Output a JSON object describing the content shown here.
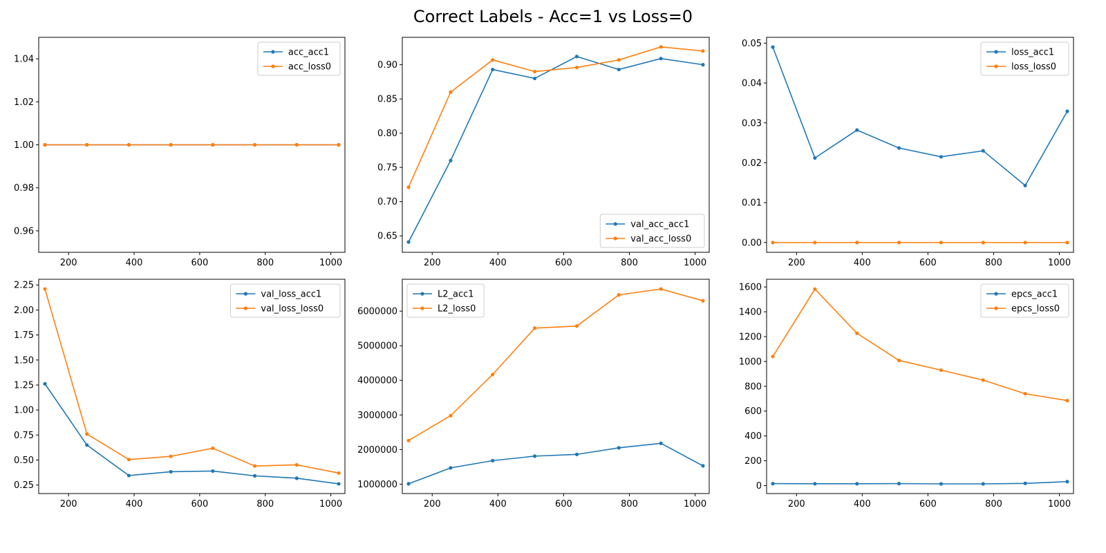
{
  "title": "Correct Labels - Acc=1 vs Loss=0",
  "colors": {
    "series1": "#1f77b4",
    "series2": "#ff7f0e"
  },
  "chart_data": [
    {
      "type": "line",
      "x": [
        128,
        256,
        384,
        512,
        640,
        768,
        896,
        1024
      ],
      "series": [
        {
          "name": "acc_acc1",
          "values": [
            1,
            1,
            1,
            1,
            1,
            1,
            1,
            1
          ]
        },
        {
          "name": "acc_loss0",
          "values": [
            1,
            1,
            1,
            1,
            1,
            1,
            1,
            1
          ]
        }
      ],
      "xlim": [
        109,
        1043
      ],
      "ylim": [
        0.95,
        1.05
      ],
      "xticks": [
        200,
        400,
        600,
        800,
        1000
      ],
      "yticks": [
        0.96,
        0.98,
        1.0,
        1.02,
        1.04
      ],
      "ytick_labels": [
        "0.96",
        "0.98",
        "1.00",
        "1.02",
        "1.04"
      ],
      "legend": "upper right"
    },
    {
      "type": "line",
      "x": [
        128,
        256,
        384,
        512,
        640,
        768,
        896,
        1024
      ],
      "series": [
        {
          "name": "val_acc_acc1",
          "values": [
            0.641,
            0.76,
            0.893,
            0.88,
            0.912,
            0.893,
            0.909,
            0.9
          ]
        },
        {
          "name": "val_acc_loss0",
          "values": [
            0.721,
            0.86,
            0.907,
            0.89,
            0.896,
            0.907,
            0.926,
            0.92
          ]
        }
      ],
      "xlim": [
        109,
        1043
      ],
      "ylim": [
        0.626,
        0.94
      ],
      "xticks": [
        200,
        400,
        600,
        800,
        1000
      ],
      "yticks": [
        0.65,
        0.7,
        0.75,
        0.8,
        0.85,
        0.9
      ],
      "ytick_labels": [
        "0.65",
        "0.70",
        "0.75",
        "0.80",
        "0.85",
        "0.90"
      ],
      "legend": "lower right"
    },
    {
      "type": "line",
      "x": [
        128,
        256,
        384,
        512,
        640,
        768,
        896,
        1024
      ],
      "series": [
        {
          "name": "loss_acc1",
          "values": [
            0.049,
            0.0212,
            0.0282,
            0.0237,
            0.0215,
            0.023,
            0.0143,
            0.0329
          ]
        },
        {
          "name": "loss_loss0",
          "values": [
            0,
            0,
            0,
            0,
            0,
            0,
            0,
            0
          ]
        }
      ],
      "xlim": [
        109,
        1043
      ],
      "ylim": [
        -0.00245,
        0.05145
      ],
      "xticks": [
        200,
        400,
        600,
        800,
        1000
      ],
      "yticks": [
        0.0,
        0.01,
        0.02,
        0.03,
        0.04,
        0.05
      ],
      "ytick_labels": [
        "0.00",
        "0.01",
        "0.02",
        "0.03",
        "0.04",
        "0.05"
      ],
      "legend": "upper right"
    },
    {
      "type": "line",
      "x": [
        128,
        256,
        384,
        512,
        640,
        768,
        896,
        1024
      ],
      "series": [
        {
          "name": "val_loss_acc1",
          "values": [
            1.262,
            0.65,
            0.345,
            0.383,
            0.39,
            0.342,
            0.318,
            0.262
          ]
        },
        {
          "name": "val_loss_loss0",
          "values": [
            2.21,
            0.76,
            0.505,
            0.537,
            0.618,
            0.44,
            0.452,
            0.37
          ]
        }
      ],
      "xlim": [
        109,
        1043
      ],
      "ylim": [
        0.165,
        2.307
      ],
      "xticks": [
        200,
        400,
        600,
        800,
        1000
      ],
      "yticks": [
        0.25,
        0.5,
        0.75,
        1.0,
        1.25,
        1.5,
        1.75,
        2.0,
        2.25
      ],
      "ytick_labels": [
        "0.25",
        "0.50",
        "0.75",
        "1.00",
        "1.25",
        "1.50",
        "1.75",
        "2.00",
        "2.25"
      ],
      "legend": "upper right"
    },
    {
      "type": "line",
      "x": [
        128,
        256,
        384,
        512,
        640,
        768,
        896,
        1024
      ],
      "series": [
        {
          "name": "L2_acc1",
          "values": [
            1010000,
            1470000,
            1680000,
            1810000,
            1860000,
            2050000,
            2180000,
            1530000
          ]
        },
        {
          "name": "L2_loss0",
          "values": [
            2260000,
            2980000,
            4170000,
            5510000,
            5570000,
            6470000,
            6640000,
            6300000
          ]
        }
      ],
      "xlim": [
        109,
        1043
      ],
      "ylim": [
        728500,
        6921500
      ],
      "xticks": [
        200,
        400,
        600,
        800,
        1000
      ],
      "yticks": [
        1000000,
        2000000,
        3000000,
        4000000,
        5000000,
        6000000
      ],
      "ytick_labels": [
        "1000000",
        "2000000",
        "3000000",
        "4000000",
        "5000000",
        "6000000"
      ],
      "legend": "upper left"
    },
    {
      "type": "line",
      "x": [
        128,
        256,
        384,
        512,
        640,
        768,
        896,
        1024
      ],
      "series": [
        {
          "name": "epcs_acc1",
          "values": [
            16,
            15,
            15,
            16,
            14,
            14,
            18,
            32
          ]
        },
        {
          "name": "epcs_loss0",
          "values": [
            1040,
            1583,
            1227,
            1008,
            930,
            850,
            740,
            685
          ]
        }
      ],
      "xlim": [
        109,
        1043
      ],
      "ylim": [
        -64,
        1662
      ],
      "xticks": [
        200,
        400,
        600,
        800,
        1000
      ],
      "yticks": [
        0,
        200,
        400,
        600,
        800,
        1000,
        1200,
        1400,
        1600
      ],
      "ytick_labels": [
        "0",
        "200",
        "400",
        "600",
        "800",
        "1000",
        "1200",
        "1400",
        "1600"
      ],
      "legend": "upper right"
    }
  ]
}
